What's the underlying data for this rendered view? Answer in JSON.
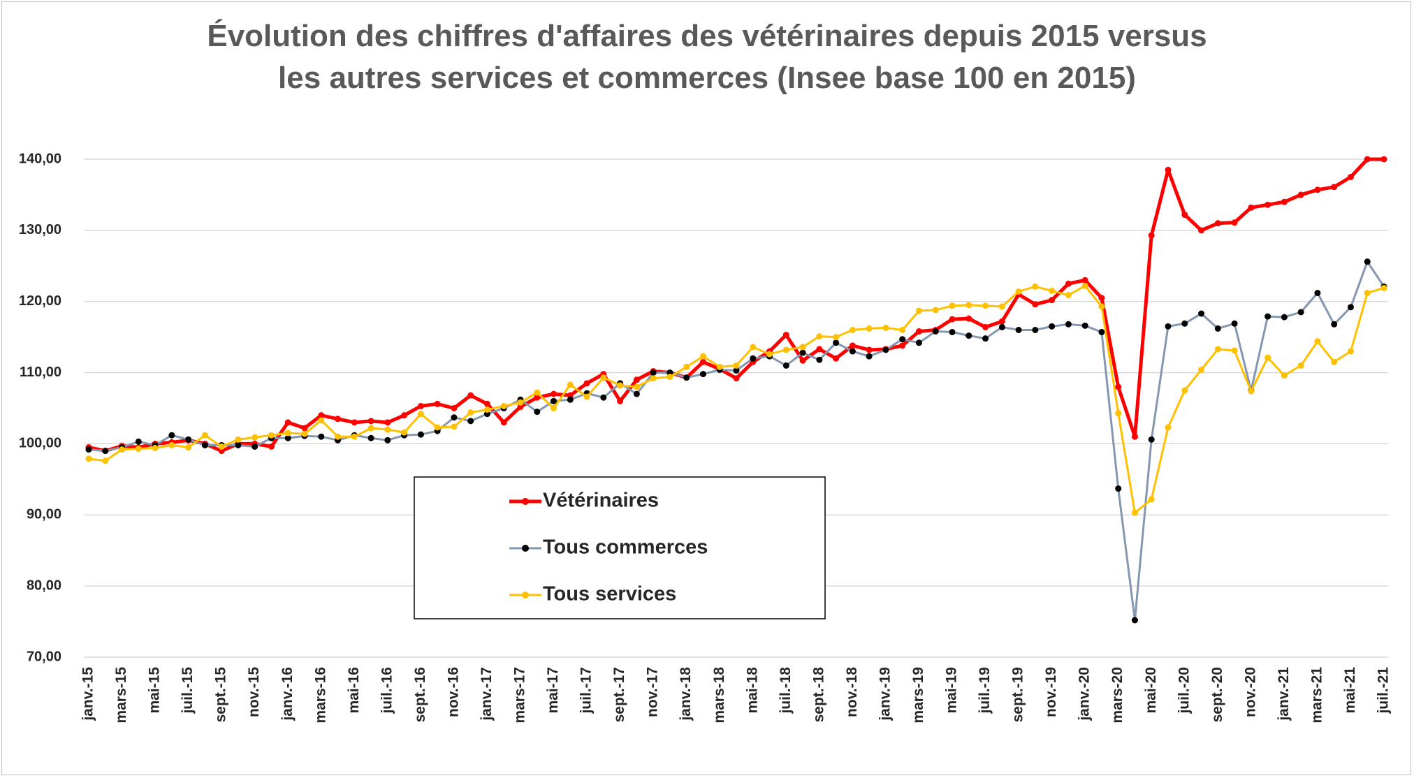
{
  "chart_data": {
    "type": "line",
    "title": "Évolution des chiffres d'affaires des vétérinaires depuis 2015 versus\nles autres services et commerces (Insee base 100 en 2015)",
    "categories": [
      "janv.-15",
      null,
      "mars-15",
      null,
      "mai-15",
      null,
      "juil.-15",
      null,
      "sept.-15",
      null,
      "nov.-15",
      null,
      "janv.-16",
      null,
      "mars-16",
      null,
      "mai-16",
      null,
      "juil.-16",
      null,
      "sept.-16",
      null,
      "nov.-16",
      null,
      "janv.-17",
      null,
      "mars-17",
      null,
      "mai-17",
      null,
      "juil.-17",
      null,
      "sept.-17",
      null,
      "nov.-17",
      null,
      "janv.-18",
      null,
      "mars-18",
      null,
      "mai-18",
      null,
      "juil.-18",
      null,
      "sept.-18",
      null,
      "nov.-18",
      null,
      "janv.-19",
      null,
      "mars-19",
      null,
      "mai-19",
      null,
      "juil.-19",
      null,
      "sept.-19",
      null,
      "nov.-19",
      null,
      "janv.-20",
      null,
      "mars-20",
      null,
      "mai-20",
      null,
      "juil.-20",
      null,
      "sept.-20",
      null,
      "nov.-20",
      null,
      "janv.-21",
      null,
      "mars-21",
      null,
      "mai-21",
      null,
      "juil.-21"
    ],
    "series": [
      {
        "name": "Vétérinaires",
        "color": "#ff0000",
        "marker_color": "#ff0000",
        "width": 5,
        "values": [
          99.5,
          99.0,
          99.7,
          99.5,
          100.0,
          100.2,
          100.5,
          100.0,
          99.0,
          100.0,
          100.0,
          99.6,
          103.0,
          102.2,
          104.0,
          103.5,
          103.0,
          103.2,
          103.0,
          104.0,
          105.3,
          105.6,
          105.0,
          106.8,
          105.6,
          103.0,
          105.2,
          106.5,
          107.0,
          106.8,
          108.5,
          109.8,
          106.0,
          109.0,
          110.2,
          110.0,
          109.3,
          111.5,
          110.5,
          109.2,
          111.5,
          113.0,
          115.3,
          111.7,
          113.3,
          112.0,
          113.8,
          113.2,
          113.3,
          113.8,
          115.8,
          116.0,
          117.5,
          117.6,
          116.4,
          117.2,
          121.0,
          119.6,
          120.2,
          122.5,
          123.0,
          120.5,
          108.0,
          101.0,
          129.3,
          138.5,
          132.2,
          130.0,
          131.0,
          131.1,
          133.2,
          133.6,
          134.0,
          135.0,
          135.7,
          136.1,
          137.5,
          140.0,
          140.0
        ]
      },
      {
        "name": "Tous commerces",
        "color": "#8497b0",
        "marker_color": "#000000",
        "width": 3,
        "values": [
          99.2,
          99.0,
          99.5,
          100.3,
          99.8,
          101.2,
          100.6,
          99.8,
          99.8,
          99.8,
          99.6,
          100.8,
          100.8,
          101.1,
          101.0,
          100.5,
          101.2,
          100.8,
          100.5,
          101.2,
          101.3,
          101.8,
          103.7,
          103.2,
          104.2,
          105.0,
          106.2,
          104.5,
          106.0,
          106.2,
          107.1,
          106.5,
          108.5,
          107.0,
          110.0,
          110.0,
          109.3,
          109.8,
          110.4,
          110.3,
          112.0,
          112.3,
          111.0,
          112.8,
          111.8,
          114.2,
          113.0,
          112.3,
          113.2,
          114.7,
          114.2,
          115.8,
          115.7,
          115.2,
          114.8,
          116.4,
          116.0,
          116.0,
          116.5,
          116.8,
          116.6,
          115.7,
          93.7,
          75.2,
          100.6,
          116.5,
          116.9,
          118.3,
          116.2,
          116.9,
          107.5,
          117.9,
          117.8,
          118.5,
          121.2,
          116.8,
          119.2,
          125.6,
          122.1
        ]
      },
      {
        "name": "Tous services",
        "color": "#ffc000",
        "marker_color": "#ffc000",
        "width": 3,
        "values": [
          97.9,
          97.6,
          99.2,
          99.3,
          99.4,
          99.8,
          99.5,
          101.2,
          99.6,
          100.6,
          100.9,
          101.2,
          101.5,
          101.4,
          103.3,
          101.0,
          101.0,
          102.2,
          102.0,
          101.6,
          104.2,
          102.3,
          102.4,
          104.4,
          104.8,
          105.3,
          105.8,
          107.2,
          105.0,
          108.3,
          106.6,
          109.3,
          108.2,
          108.0,
          109.2,
          109.4,
          110.8,
          112.3,
          110.8,
          111.0,
          113.6,
          112.6,
          113.2,
          113.6,
          115.1,
          115.0,
          116.0,
          116.2,
          116.3,
          116.0,
          118.7,
          118.8,
          119.4,
          119.5,
          119.4,
          119.3,
          121.4,
          122.1,
          121.5,
          120.9,
          122.2,
          119.3,
          104.3,
          90.3,
          92.2,
          102.3,
          107.5,
          110.4,
          113.3,
          113.1,
          107.4,
          112.1,
          109.6,
          111.0,
          114.4,
          111.5,
          113.0,
          121.2,
          121.9
        ]
      }
    ],
    "ylim": [
      70,
      140
    ],
    "yticks": [
      {
        "value": 70,
        "label": "70,00"
      },
      {
        "value": 80,
        "label": "80,00"
      },
      {
        "value": 90,
        "label": "90,00"
      },
      {
        "value": 100,
        "label": "100,00"
      },
      {
        "value": 110,
        "label": "110,00"
      },
      {
        "value": 120,
        "label": "120,00"
      },
      {
        "value": 130,
        "label": "130,00"
      },
      {
        "value": 140,
        "label": "140,00"
      }
    ],
    "grid": true,
    "legend": "center-left"
  }
}
